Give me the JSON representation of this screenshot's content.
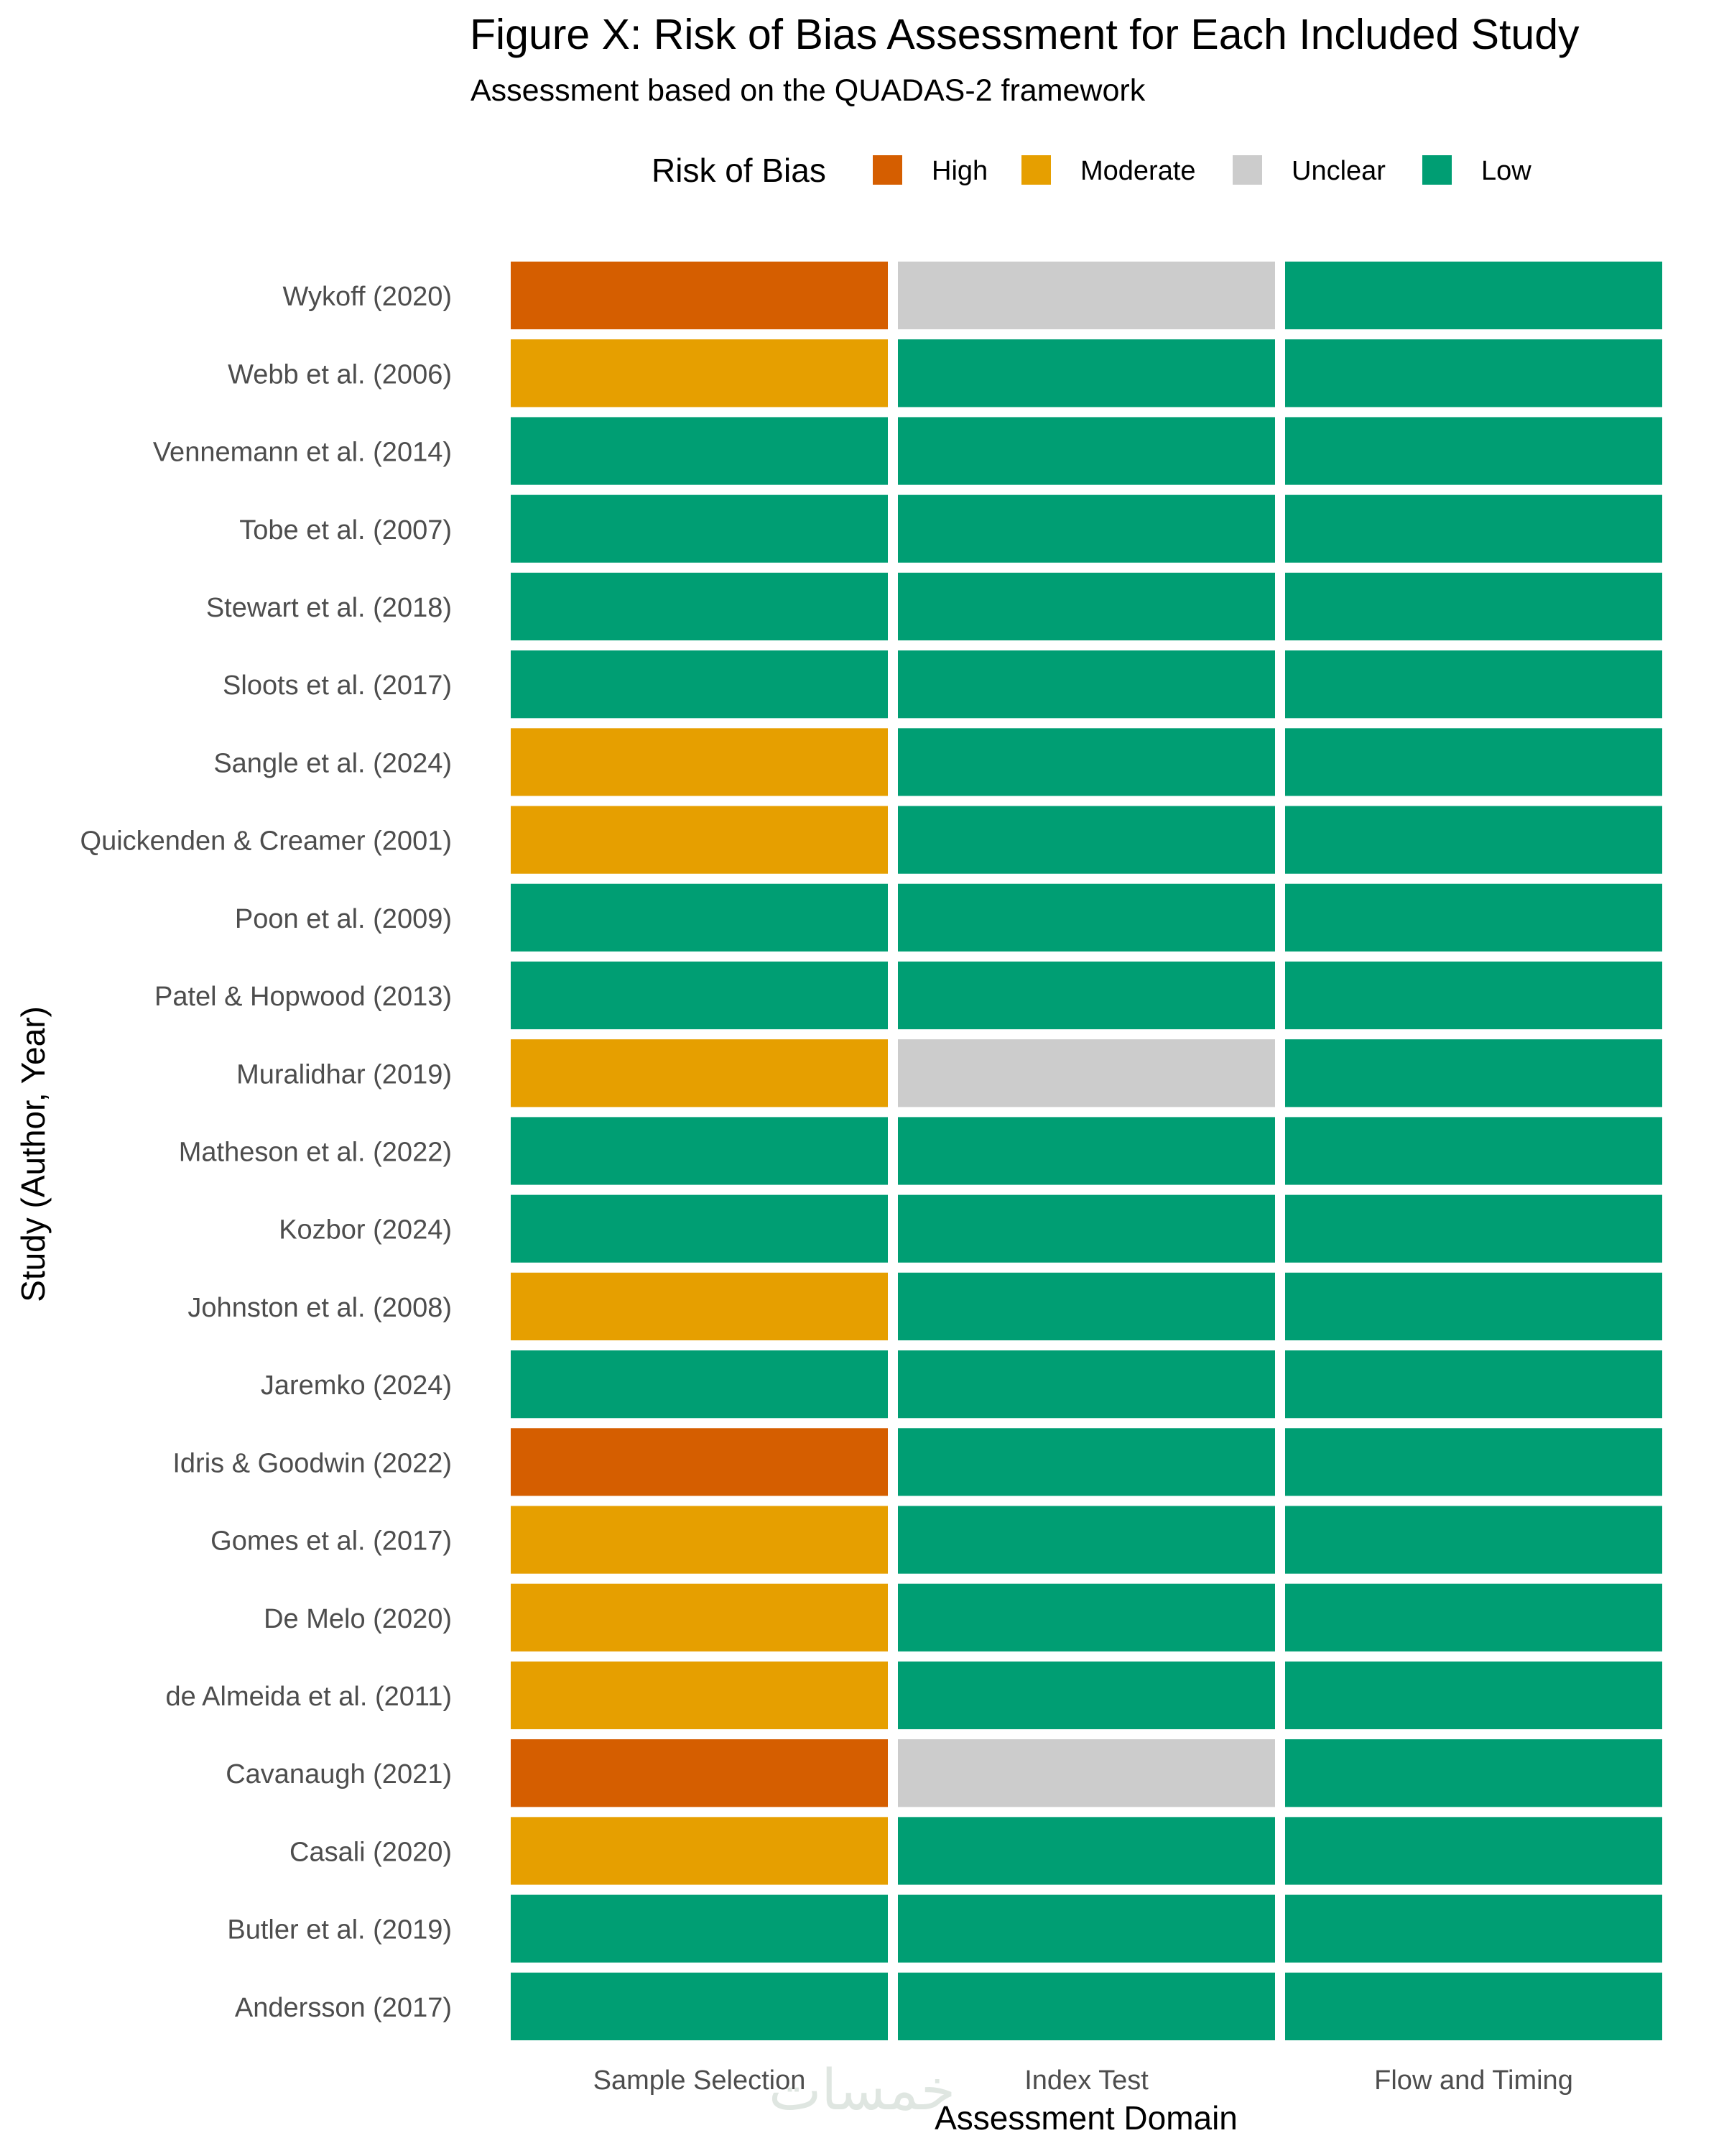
{
  "chart_data": {
    "type": "heatmap",
    "title": "Figure X: Risk of Bias Assessment for Each Included Study",
    "subtitle": "Assessment based on the QUADAS-2 framework",
    "xlabel": "Assessment Domain",
    "ylabel": "Study (Author, Year)",
    "legend": {
      "title": "Risk of Bias",
      "position": "top",
      "entries": [
        {
          "label": "High",
          "color": "#D55E00"
        },
        {
          "label": "Moderate",
          "color": "#E69F00"
        },
        {
          "label": "Unclear",
          "color": "#CCCCCC"
        },
        {
          "label": "Low",
          "color": "#009E73"
        }
      ]
    },
    "domains": [
      "Sample Selection",
      "Index Test",
      "Flow and Timing"
    ],
    "studies": [
      {
        "name": "Wykoff (2020)",
        "ratings": [
          "High",
          "Unclear",
          "Low"
        ]
      },
      {
        "name": "Webb et al. (2006)",
        "ratings": [
          "Moderate",
          "Low",
          "Low"
        ]
      },
      {
        "name": "Vennemann et al. (2014)",
        "ratings": [
          "Low",
          "Low",
          "Low"
        ]
      },
      {
        "name": "Tobe et al. (2007)",
        "ratings": [
          "Low",
          "Low",
          "Low"
        ]
      },
      {
        "name": "Stewart et al. (2018)",
        "ratings": [
          "Low",
          "Low",
          "Low"
        ]
      },
      {
        "name": "Sloots et al. (2017)",
        "ratings": [
          "Low",
          "Low",
          "Low"
        ]
      },
      {
        "name": "Sangle et al. (2024)",
        "ratings": [
          "Moderate",
          "Low",
          "Low"
        ]
      },
      {
        "name": "Quickenden & Creamer (2001)",
        "ratings": [
          "Moderate",
          "Low",
          "Low"
        ]
      },
      {
        "name": "Poon et al. (2009)",
        "ratings": [
          "Low",
          "Low",
          "Low"
        ]
      },
      {
        "name": "Patel & Hopwood (2013)",
        "ratings": [
          "Low",
          "Low",
          "Low"
        ]
      },
      {
        "name": "Muralidhar (2019)",
        "ratings": [
          "Moderate",
          "Unclear",
          "Low"
        ]
      },
      {
        "name": "Matheson et al. (2022)",
        "ratings": [
          "Low",
          "Low",
          "Low"
        ]
      },
      {
        "name": "Kozbor (2024)",
        "ratings": [
          "Low",
          "Low",
          "Low"
        ]
      },
      {
        "name": "Johnston et al. (2008)",
        "ratings": [
          "Moderate",
          "Low",
          "Low"
        ]
      },
      {
        "name": "Jaremko (2024)",
        "ratings": [
          "Low",
          "Low",
          "Low"
        ]
      },
      {
        "name": "Idris & Goodwin (2022)",
        "ratings": [
          "High",
          "Low",
          "Low"
        ]
      },
      {
        "name": "Gomes et al. (2017)",
        "ratings": [
          "Moderate",
          "Low",
          "Low"
        ]
      },
      {
        "name": "De Melo (2020)",
        "ratings": [
          "Moderate",
          "Low",
          "Low"
        ]
      },
      {
        "name": "de Almeida et al. (2011)",
        "ratings": [
          "Moderate",
          "Low",
          "Low"
        ]
      },
      {
        "name": "Cavanaugh (2021)",
        "ratings": [
          "High",
          "Unclear",
          "Low"
        ]
      },
      {
        "name": "Casali (2020)",
        "ratings": [
          "Moderate",
          "Low",
          "Low"
        ]
      },
      {
        "name": "Butler et al. (2019)",
        "ratings": [
          "Low",
          "Low",
          "Low"
        ]
      },
      {
        "name": "Andersson (2017)",
        "ratings": [
          "Low",
          "Low",
          "Low"
        ]
      }
    ],
    "grid": false
  },
  "watermark": "خمسات"
}
